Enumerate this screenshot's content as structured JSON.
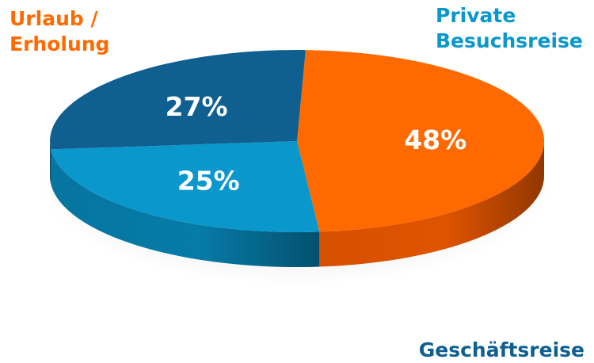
{
  "chart_data": {
    "type": "pie",
    "style": "3d",
    "legend": "none",
    "slices": [
      {
        "label_lines": [
          "Urlaub /",
          "Erholung"
        ],
        "value": 48,
        "value_label": "48%",
        "color": "#FF6A00",
        "side_color": "#E05400",
        "label_color": "#FF6A00"
      },
      {
        "label_lines": [
          "Private",
          "Besuchsreise"
        ],
        "value": 25,
        "value_label": "25%",
        "color": "#0A97CC",
        "side_color": "#067BA8",
        "label_color": "#0A97CC"
      },
      {
        "label_lines": [
          "Geschäftsreise"
        ],
        "value": 27,
        "value_label": "27%",
        "color": "#0F5F90",
        "side_color": "#0A4468",
        "label_color": "#0F5F90"
      }
    ]
  }
}
